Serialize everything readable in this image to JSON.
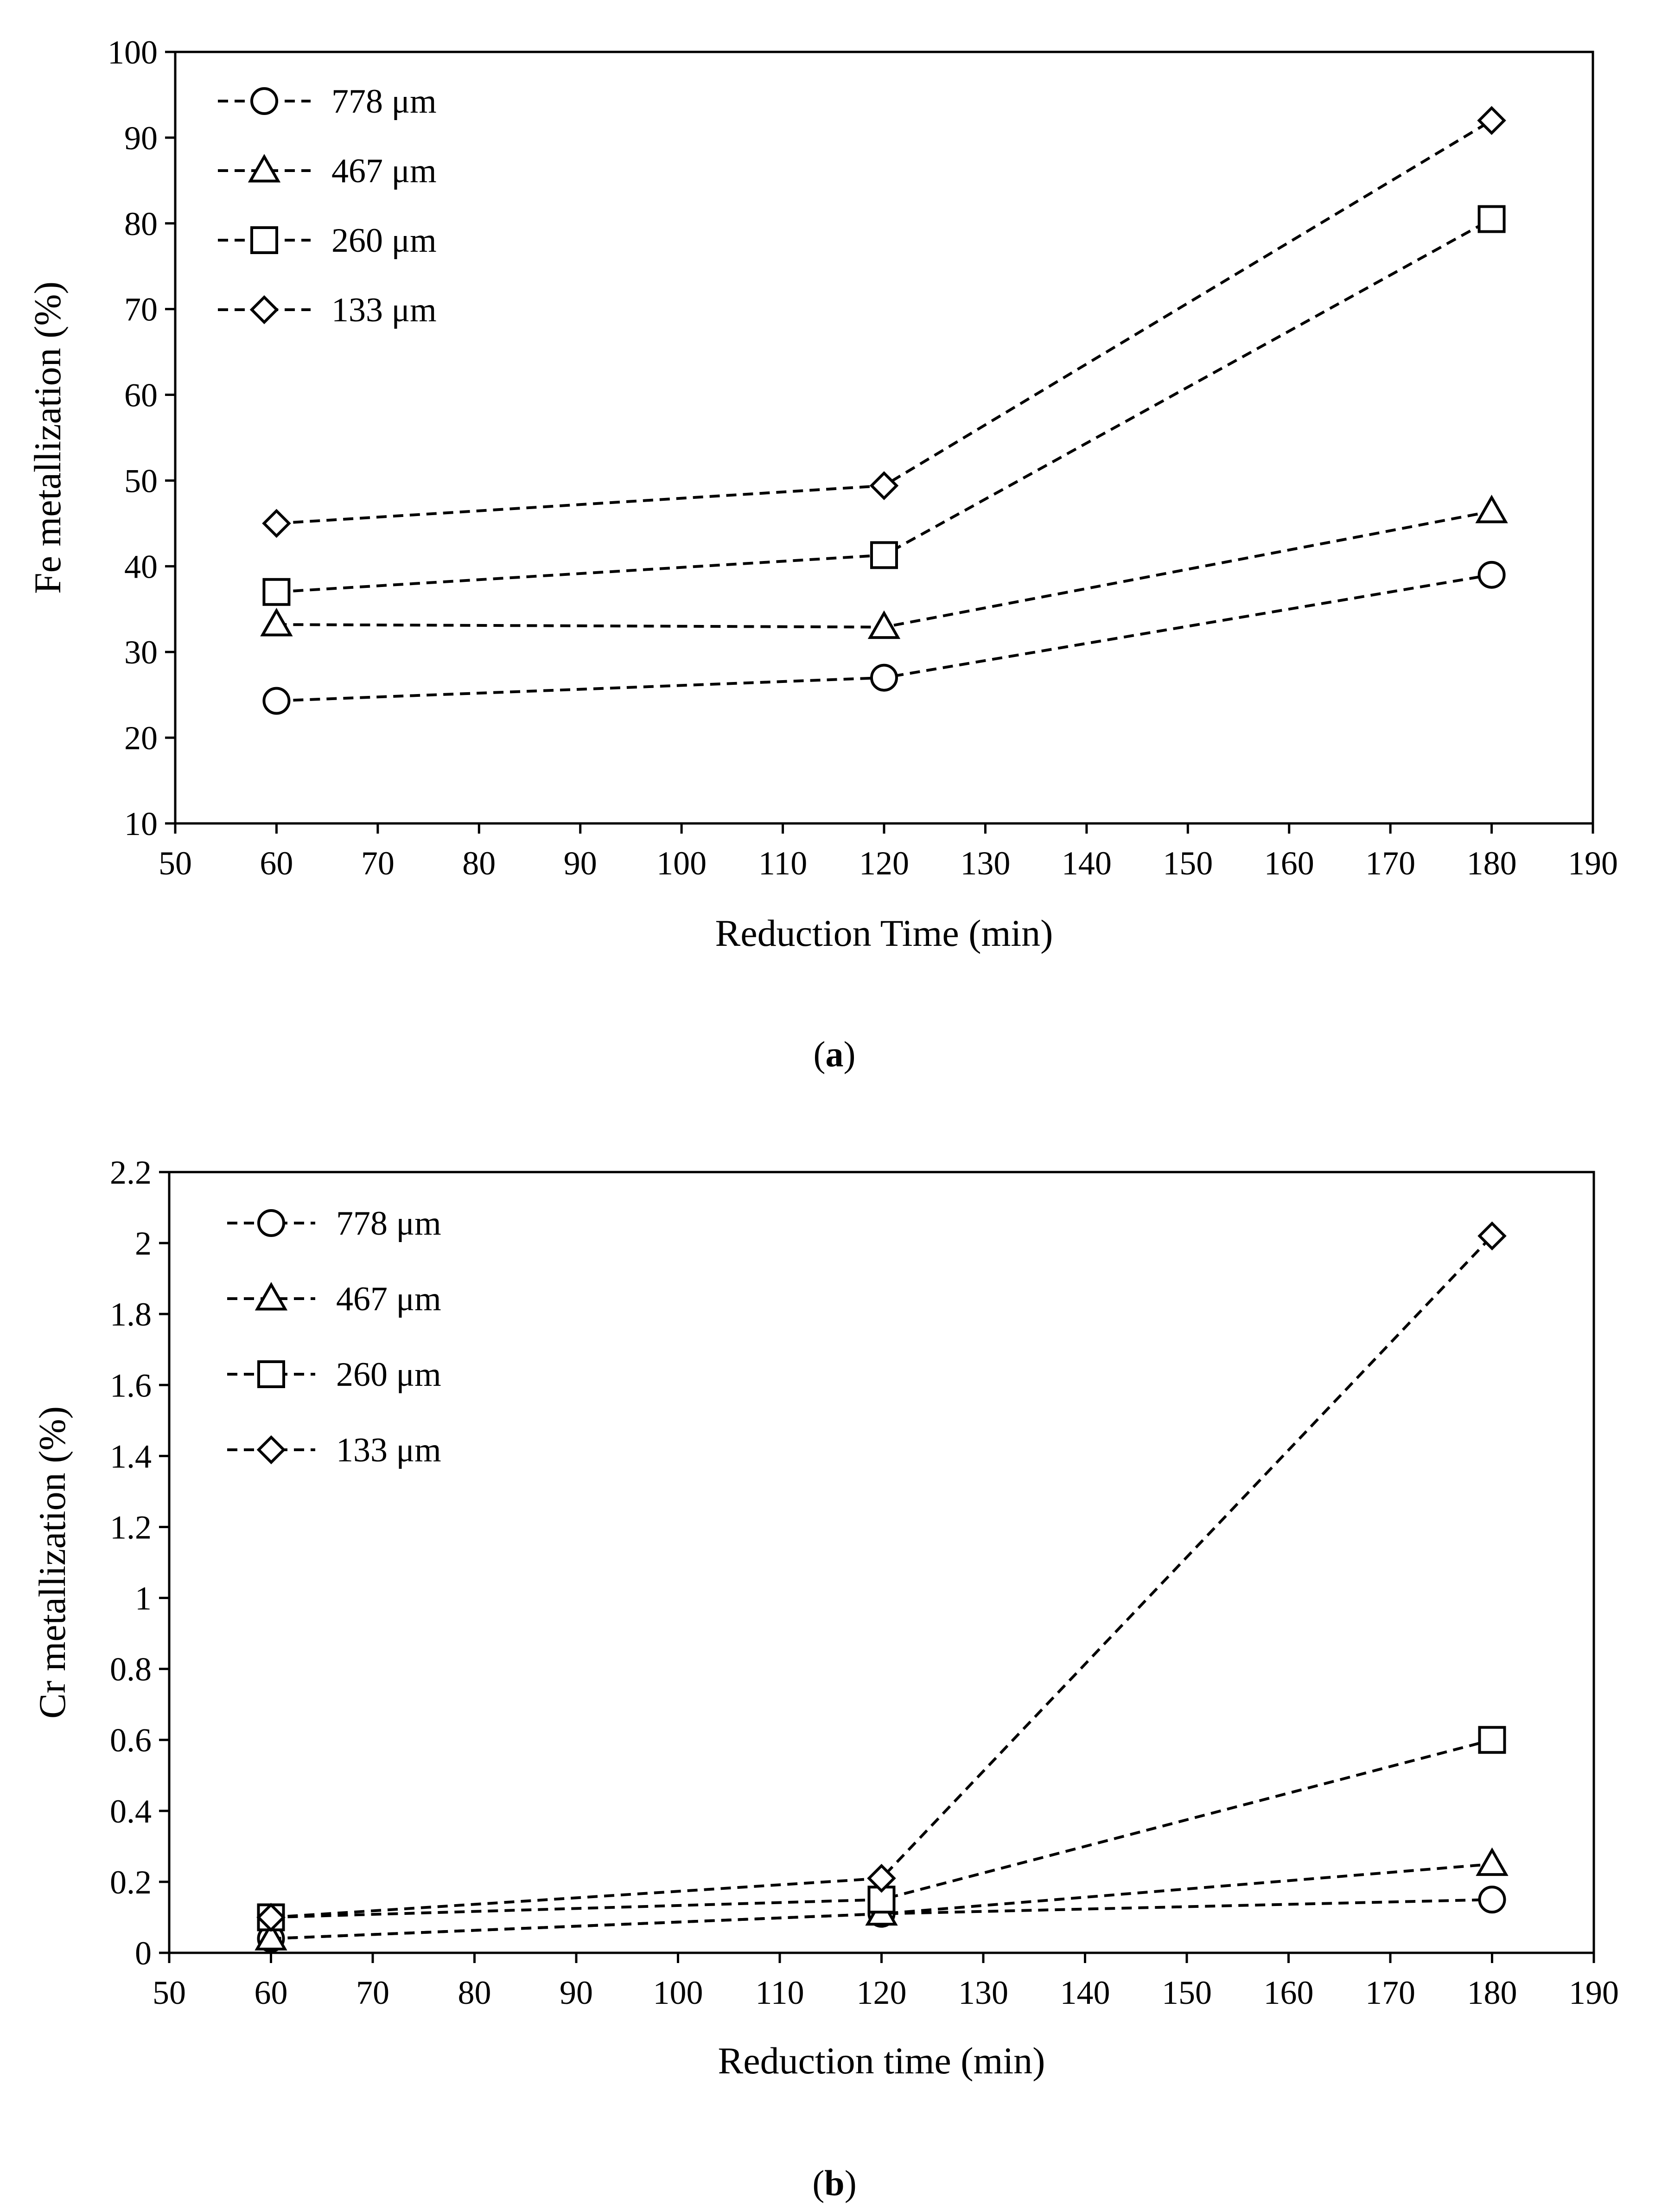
{
  "chart_data": [
    {
      "type": "line",
      "panel_label": "a",
      "title": "",
      "xlabel": "Reduction Time (min)",
      "ylabel": "Fe metallization (%)",
      "xlim": [
        50,
        190
      ],
      "ylim": [
        10,
        100
      ],
      "x_ticks": [
        50,
        60,
        70,
        80,
        90,
        100,
        110,
        120,
        130,
        140,
        150,
        160,
        170,
        180,
        190
      ],
      "x_tick_labels": [
        "50",
        "60",
        "70",
        "80",
        "90",
        "100",
        "110",
        "120",
        "130",
        "140",
        "150",
        "160",
        "170",
        "180",
        "190"
      ],
      "y_ticks": [
        10,
        20,
        30,
        40,
        50,
        60,
        70,
        80,
        90,
        100
      ],
      "y_tick_labels": [
        "10",
        "20",
        "30",
        "40",
        "50",
        "60",
        "70",
        "80",
        "90",
        "100"
      ],
      "grid": false,
      "legend_position": "top-left",
      "x": [
        60,
        120,
        180
      ],
      "series": [
        {
          "name": "778 μm",
          "marker": "circle",
          "values": [
            24.3,
            27.0,
            39.0
          ]
        },
        {
          "name": "467 μm",
          "marker": "triangle",
          "values": [
            33.2,
            32.9,
            46.4
          ]
        },
        {
          "name": "260 μm",
          "marker": "square",
          "values": [
            37.0,
            41.3,
            80.5
          ]
        },
        {
          "name": "133 μm",
          "marker": "diamond",
          "values": [
            45.0,
            49.4,
            92.0
          ]
        }
      ]
    },
    {
      "type": "line",
      "panel_label": "b",
      "title": "",
      "xlabel": "Reduction time (min)",
      "ylabel": "Cr metallization (%)",
      "xlim": [
        50,
        190
      ],
      "ylim": [
        0,
        2.2
      ],
      "x_ticks": [
        50,
        60,
        70,
        80,
        90,
        100,
        110,
        120,
        130,
        140,
        150,
        160,
        170,
        180,
        190
      ],
      "x_tick_labels": [
        "50",
        "60",
        "70",
        "80",
        "90",
        "100",
        "110",
        "120",
        "130",
        "140",
        "150",
        "160",
        "170",
        "180",
        "190"
      ],
      "y_ticks": [
        0,
        0.2,
        0.4,
        0.6,
        0.8,
        1,
        1.2,
        1.4,
        1.6,
        1.8,
        2,
        2.2
      ],
      "y_tick_labels": [
        "0",
        "0.2",
        "0.4",
        "0.6",
        "0.8",
        "1",
        "1.2",
        "1.4",
        "1.6",
        "1.8",
        "2",
        "2.2"
      ],
      "grid": false,
      "legend_position": "top-left",
      "x": [
        60,
        120,
        180
      ],
      "series": [
        {
          "name": "778 μm",
          "marker": "circle",
          "values": [
            0.04,
            0.11,
            0.15
          ]
        },
        {
          "name": "467 μm",
          "marker": "triangle",
          "values": [
            0.04,
            0.11,
            0.25
          ]
        },
        {
          "name": "260 μm",
          "marker": "square",
          "values": [
            0.1,
            0.15,
            0.6
          ]
        },
        {
          "name": "133 μm",
          "marker": "diamond",
          "values": [
            0.1,
            0.21,
            2.02
          ]
        }
      ]
    }
  ],
  "captions": {
    "a": {
      "open": "(",
      "letter": "a",
      "close": ")"
    },
    "b": {
      "open": "(",
      "letter": "b",
      "close": ")"
    }
  },
  "colors": {
    "line": "#000000",
    "marker_fill": "#ffffff",
    "background": "#ffffff"
  }
}
